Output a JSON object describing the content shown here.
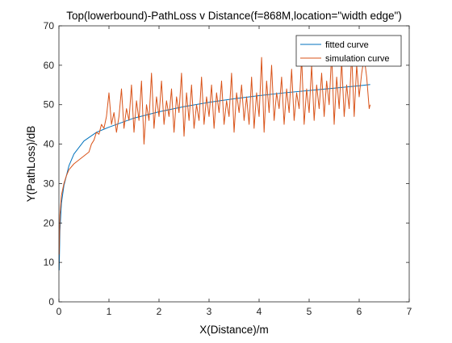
{
  "chart_data": {
    "type": "line",
    "title": "Top(lowerbound)-PathLoss v Distance(f=868M,location=\"width edge\")",
    "xlabel": "X(Distance)/m",
    "ylabel": "Y(PathLoss)/dB",
    "xlim": [
      0,
      7
    ],
    "ylim": [
      0,
      70
    ],
    "xticks": [
      0,
      1,
      2,
      3,
      4,
      5,
      6,
      7
    ],
    "yticks": [
      0,
      10,
      20,
      30,
      40,
      50,
      60,
      70
    ],
    "grid": false,
    "legend_position": "top-right",
    "series": [
      {
        "name": "fitted curve",
        "color": "#0072BD",
        "x": [
          0.005,
          0.02,
          0.05,
          0.1,
          0.2,
          0.3,
          0.5,
          0.75,
          1.0,
          1.5,
          2.0,
          2.5,
          3.0,
          3.5,
          4.0,
          4.5,
          5.0,
          5.5,
          6.0,
          6.22
        ],
        "y": [
          8,
          18,
          25,
          29.5,
          34.5,
          37.5,
          40.8,
          43.0,
          44.3,
          46.6,
          48.2,
          49.5,
          50.6,
          51.5,
          52.3,
          53.0,
          53.6,
          54.2,
          54.8,
          55.1
        ]
      },
      {
        "name": "simulation curve",
        "color": "#D95319",
        "x": [
          0.005,
          0.02,
          0.05,
          0.1,
          0.15,
          0.2,
          0.3,
          0.4,
          0.5,
          0.6,
          0.65,
          0.7,
          0.75,
          0.8,
          0.85,
          0.9,
          0.95,
          1.0,
          1.05,
          1.1,
          1.15,
          1.2,
          1.25,
          1.3,
          1.35,
          1.4,
          1.45,
          1.5,
          1.55,
          1.6,
          1.65,
          1.7,
          1.75,
          1.8,
          1.85,
          1.9,
          1.95,
          2.0,
          2.05,
          2.1,
          2.15,
          2.2,
          2.25,
          2.3,
          2.35,
          2.4,
          2.45,
          2.5,
          2.55,
          2.6,
          2.65,
          2.7,
          2.75,
          2.8,
          2.85,
          2.9,
          2.95,
          3.0,
          3.05,
          3.1,
          3.15,
          3.2,
          3.25,
          3.3,
          3.35,
          3.4,
          3.45,
          3.5,
          3.55,
          3.6,
          3.65,
          3.7,
          3.75,
          3.8,
          3.85,
          3.9,
          3.95,
          4.0,
          4.05,
          4.1,
          4.15,
          4.2,
          4.25,
          4.3,
          4.35,
          4.4,
          4.45,
          4.5,
          4.55,
          4.6,
          4.65,
          4.7,
          4.75,
          4.8,
          4.85,
          4.9,
          4.95,
          5.0,
          5.05,
          5.1,
          5.15,
          5.2,
          5.25,
          5.3,
          5.35,
          5.4,
          5.45,
          5.5,
          5.55,
          5.6,
          5.65,
          5.7,
          5.75,
          5.8,
          5.85,
          5.9,
          5.95,
          6.0,
          6.05,
          6.1,
          6.15,
          6.2,
          6.22
        ],
        "y": [
          12,
          22,
          27,
          30,
          32,
          33.5,
          35,
          36,
          37,
          38,
          40,
          41,
          43,
          42.5,
          45,
          44,
          47,
          53,
          45,
          48,
          43,
          47,
          54,
          44,
          49,
          46,
          55,
          43,
          51,
          46,
          56,
          40,
          50,
          46,
          58,
          44,
          52,
          47,
          56,
          45,
          51,
          47,
          54,
          43,
          52,
          48,
          58,
          42,
          53,
          46,
          55,
          44,
          50,
          46,
          57,
          45,
          52,
          47,
          55,
          44,
          53,
          48,
          56,
          45,
          51,
          47,
          58,
          43,
          53,
          48,
          55,
          46,
          52,
          45,
          57,
          44,
          53,
          47,
          62,
          43,
          56,
          48,
          60,
          46,
          53,
          49,
          57,
          45,
          54,
          48,
          59,
          46,
          53,
          49,
          62,
          45,
          54,
          48,
          60,
          46,
          55,
          49,
          58,
          47,
          56,
          50,
          63,
          45,
          57,
          49,
          61,
          47,
          55,
          49,
          63,
          47,
          60,
          52,
          58,
          62,
          57,
          49,
          50
        ]
      }
    ]
  }
}
